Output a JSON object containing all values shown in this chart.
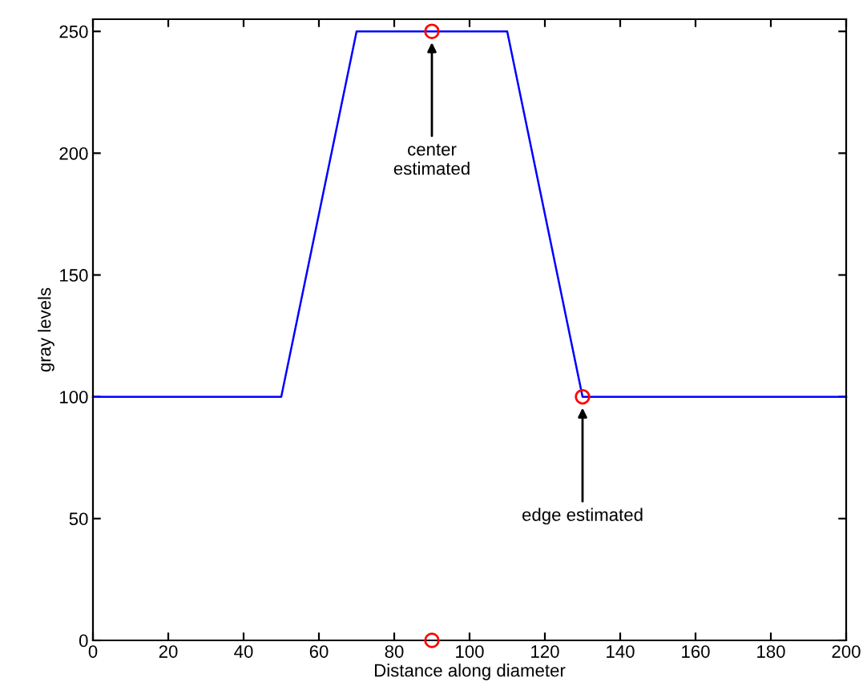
{
  "chart_data": {
    "type": "line",
    "xlabel": "Distance along diameter",
    "ylabel": "gray levels",
    "xlim": [
      0,
      200
    ],
    "ylim": [
      0,
      255
    ],
    "xticks": [
      0,
      20,
      40,
      60,
      80,
      100,
      120,
      140,
      160,
      180,
      200
    ],
    "yticks": [
      0,
      50,
      100,
      150,
      200,
      250
    ],
    "grid": false,
    "legend": false,
    "series": [
      {
        "color": "#0000ff",
        "x": [
          0,
          50,
          70,
          110,
          130,
          200
        ],
        "values": [
          100,
          100,
          250,
          250,
          100,
          100
        ],
        "marker": "none"
      },
      {
        "type": "scatter",
        "color": "#ff0000",
        "x": [
          90,
          130,
          90
        ],
        "values": [
          250,
          100,
          0
        ],
        "marker": "circle"
      }
    ],
    "annotations": [
      {
        "text": "center\nestimated",
        "x": 90,
        "y": 250
      },
      {
        "text": "edge estimated",
        "x": 130,
        "y": 100
      }
    ]
  }
}
